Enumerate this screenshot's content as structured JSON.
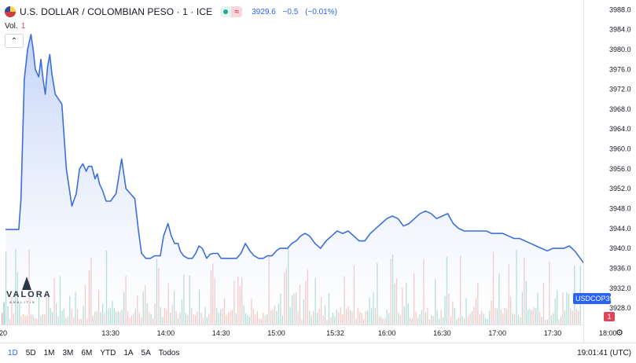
{
  "header": {
    "symbol_title": "U.S. DOLLAR / COLOMBIAN PESO · 1 · ICE",
    "last": "3929.6",
    "change": "−0.5",
    "change_pct": "(−0.01%)",
    "flag_icon": "usd-cop-flag-icon",
    "market_status_icon": "market-open-dot-icon",
    "equal_icon": "approx-equal-icon"
  },
  "volume_label": {
    "label": "Vol.",
    "value": "1"
  },
  "price_tag": {
    "symbol": "USDCOP",
    "value": "3929.6"
  },
  "volume_tag": "1",
  "logo": {
    "name": "VALORA",
    "tagline": "ANALITIK"
  },
  "range_buttons": [
    "1D",
    "5D",
    "1M",
    "3M",
    "6M",
    "YTD",
    "1A",
    "5A",
    "Todos"
  ],
  "range_active": "1D",
  "clock": "19:01:41 (UTC)",
  "colors": {
    "line": "#3d6fd8",
    "fill_top": "#b9ccf5",
    "fill_bottom": "#ffffff",
    "vol_up": "#7fc8bc",
    "vol_down": "#f0a3a3",
    "accent": "#2962ff"
  },
  "chart_data": {
    "type": "area",
    "title": "U.S. DOLLAR / COLOMBIAN PESO · 1 · ICE",
    "y_ticks": [
      3932,
      3936,
      3940,
      3944,
      3948,
      3952,
      3956,
      3960,
      3964,
      3968,
      3972,
      3976,
      3980,
      3984,
      3988
    ],
    "y_tick_labels": [
      "3932.0",
      "3936.0",
      "3940.0",
      "3944.0",
      "3948.0",
      "3952.0",
      "3956.0",
      "3960.0",
      "3964.0",
      "3968.0",
      "3972.0",
      "3976.0",
      "3980.0",
      "3984.0",
      "3988.0"
    ],
    "partial_tick_label": "3928.0",
    "ylim": [
      3927,
      3988.6
    ],
    "x_tick_labels": [
      {
        "t": 12.5,
        "label": "20"
      },
      {
        "t": 13.5,
        "label": "13:30"
      },
      {
        "t": 14.0,
        "label": "14:00"
      },
      {
        "t": 14.5,
        "label": "14:30"
      },
      {
        "t": 15.0,
        "label": "15:00"
      },
      {
        "t": 15.533,
        "label": "15:32"
      },
      {
        "t": 16.0,
        "label": "16:00"
      },
      {
        "t": 16.5,
        "label": "16:30"
      },
      {
        "t": 17.0,
        "label": "17:00"
      },
      {
        "t": 17.5,
        "label": "17:30"
      },
      {
        "t": 18.0,
        "label": "18:00"
      }
    ],
    "xlim": [
      12.55,
      18.2
    ],
    "series": [
      {
        "t": [
          12.55,
          12.63,
          12.67,
          12.69,
          12.72,
          12.75,
          12.78,
          12.8,
          12.82,
          12.85,
          12.87,
          12.89,
          12.91,
          12.93,
          12.95,
          12.97,
          13.0,
          13.03,
          13.06,
          13.1,
          13.15,
          13.19,
          13.22,
          13.25,
          13.28,
          13.3,
          13.33,
          13.36,
          13.38,
          13.4,
          13.43,
          13.46,
          13.5,
          13.55,
          13.6,
          13.64,
          13.68,
          13.72,
          13.75,
          13.78,
          13.8,
          13.82,
          13.86,
          13.9,
          13.95,
          13.98,
          14.02,
          14.05,
          14.08,
          14.11,
          14.13,
          14.16,
          14.2,
          14.24,
          14.27,
          14.3,
          14.33,
          14.37,
          14.4,
          14.43,
          14.47,
          14.5,
          14.53,
          14.57,
          14.6,
          14.64,
          14.68,
          14.72,
          14.76,
          14.8,
          14.84,
          14.88,
          14.92,
          14.96,
          15.0,
          15.03,
          15.06,
          15.1,
          15.14,
          15.18,
          15.22,
          15.26,
          15.3,
          15.35,
          15.4,
          15.45,
          15.5,
          15.55,
          15.6,
          15.65,
          15.7,
          15.75,
          15.8,
          15.85,
          15.9,
          15.95,
          16.0,
          16.05,
          16.1,
          16.15,
          16.2,
          16.25,
          16.3,
          16.35,
          16.4,
          16.45,
          16.5,
          16.55,
          16.6,
          16.65,
          16.7,
          16.75,
          16.8,
          16.85,
          16.9,
          16.95,
          17.0,
          17.05,
          17.1,
          17.15,
          17.2,
          17.25,
          17.3,
          17.35,
          17.4,
          17.45,
          17.5,
          17.55,
          17.6,
          17.65,
          17.7,
          17.75,
          17.8,
          17.85,
          17.9,
          17.95,
          18.0,
          18.05,
          18.1
        ],
        "y": [
          3943.8,
          3943.8,
          3943.8,
          3950.0,
          3974.0,
          3980.0,
          3983.0,
          3980.0,
          3976.0,
          3974.5,
          3978.0,
          3974.0,
          3971.0,
          3976.5,
          3979.0,
          3975.0,
          3971.0,
          3970.0,
          3969.0,
          3956.0,
          3948.5,
          3951.0,
          3956.0,
          3957.0,
          3955.5,
          3956.5,
          3956.5,
          3954.0,
          3955.0,
          3953.0,
          3951.5,
          3949.5,
          3949.5,
          3951.0,
          3958.0,
          3952.0,
          3951.0,
          3950.0,
          3944.0,
          3939.0,
          3938.5,
          3938.0,
          3938.0,
          3938.5,
          3938.5,
          3942.5,
          3945.0,
          3942.5,
          3941.0,
          3941.0,
          3939.5,
          3938.5,
          3938.0,
          3938.0,
          3939.0,
          3940.5,
          3940.0,
          3938.0,
          3938.8,
          3939.0,
          3939.0,
          3938.0,
          3938.0,
          3938.0,
          3938.0,
          3938.0,
          3939.0,
          3941.0,
          3939.5,
          3938.5,
          3938.0,
          3938.0,
          3938.5,
          3938.5,
          3939.5,
          3940.0,
          3940.0,
          3940.0,
          3941.0,
          3941.5,
          3942.5,
          3943.0,
          3942.5,
          3941.0,
          3940.0,
          3941.5,
          3942.5,
          3943.5,
          3943.0,
          3943.5,
          3942.5,
          3941.5,
          3941.5,
          3943.0,
          3944.0,
          3945.0,
          3946.0,
          3946.5,
          3946.0,
          3944.5,
          3945.0,
          3946.0,
          3947.0,
          3947.5,
          3947.0,
          3946.0,
          3946.5,
          3947.0,
          3945.0,
          3944.0,
          3943.5,
          3943.5,
          3943.5,
          3943.5,
          3943.5,
          3943.0,
          3943.0,
          3943.0,
          3942.5,
          3942.0,
          3942.0,
          3941.5,
          3941.0,
          3940.5,
          3940.0,
          3939.5,
          3940.0,
          3940.0,
          3940.0,
          3940.5,
          3939.5,
          3938.0,
          3936.5,
          3935.5,
          3935.0,
          3934.5,
          3933.5,
          3932.5,
          3931.5
        ]
      }
    ],
    "last_value": 3929.6,
    "grid": true,
    "legend": "none"
  }
}
